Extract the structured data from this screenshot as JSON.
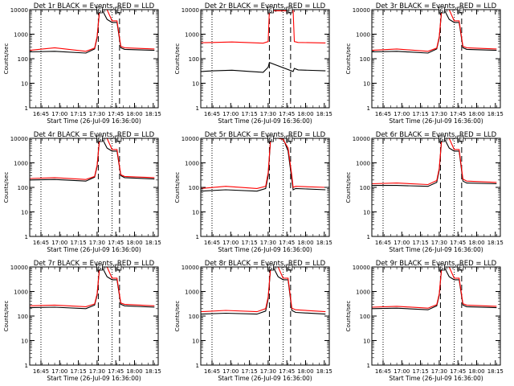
{
  "common": {
    "xlabel": "Start Time (26-Jul-09 16:36:00)",
    "ylabel": "Counts/sec",
    "xticks": [
      "16:45",
      "17:00",
      "17:15",
      "17:30",
      "17:45",
      "18:00",
      "18:15"
    ],
    "yticks": [
      "1",
      "10",
      "100",
      "1000",
      "10000"
    ],
    "ylim": [
      1,
      10000
    ],
    "xlim_minutes_after_16_36": [
      0,
      103
    ],
    "dotted_lines_minutes_after_16_36": [
      9,
      66
    ],
    "dashed_lines_minutes_after_16_36": [
      55,
      72
    ],
    "top_markers": [
      {
        "label": "S",
        "minute": 56
      },
      {
        "label": "E",
        "minute": 71
      }
    ],
    "colors": {
      "events": "#000000",
      "lld": "#ff0000"
    }
  },
  "chart_data": [
    {
      "type": "line",
      "title": "Det 1r BLACK = Events, RED = LLD",
      "yscale": "log",
      "x_minutes": [
        0,
        20,
        45,
        52,
        54,
        56,
        58,
        62,
        66,
        70,
        73,
        76,
        100
      ],
      "series": [
        {
          "name": "Events",
          "values": [
            190,
            200,
            170,
            250,
            700,
            10000,
            10000,
            4000,
            3000,
            3000,
            280,
            240,
            220
          ]
        },
        {
          "name": "LLD",
          "values": [
            220,
            280,
            200,
            270,
            800,
            10000,
            10000,
            10000,
            3500,
            3500,
            320,
            280,
            250
          ]
        }
      ]
    },
    {
      "type": "line",
      "title": "Det 2r BLACK = Events, RED = LLD",
      "yscale": "log",
      "x_minutes": [
        0,
        10,
        25,
        40,
        50,
        54,
        55,
        74,
        75,
        78,
        100
      ],
      "series": [
        {
          "name": "Events",
          "values": [
            30,
            32,
            34,
            30,
            28,
            45,
            70,
            30,
            40,
            35,
            32
          ]
        },
        {
          "name": "LLD",
          "values": [
            450,
            460,
            480,
            450,
            430,
            500,
            9000,
            9000,
            500,
            460,
            440
          ]
        }
      ]
    },
    {
      "type": "line",
      "title": "Det 3r BLACK = Events, RED = LLD",
      "yscale": "log",
      "x_minutes": [
        0,
        20,
        45,
        52,
        54,
        56,
        58,
        62,
        66,
        70,
        73,
        76,
        100
      ],
      "series": [
        {
          "name": "Events",
          "values": [
            190,
            200,
            170,
            250,
            700,
            10000,
            10000,
            4000,
            3000,
            3000,
            280,
            240,
            220
          ]
        },
        {
          "name": "LLD",
          "values": [
            220,
            250,
            200,
            270,
            800,
            10000,
            10000,
            10000,
            3500,
            3500,
            320,
            280,
            250
          ]
        }
      ]
    },
    {
      "type": "line",
      "title": "Det 4r BLACK = Events, RED = LLD",
      "yscale": "log",
      "x_minutes": [
        0,
        20,
        45,
        52,
        54,
        56,
        58,
        62,
        66,
        70,
        73,
        76,
        100
      ],
      "series": [
        {
          "name": "Events",
          "values": [
            200,
            210,
            180,
            260,
            700,
            10000,
            10000,
            4000,
            3000,
            3000,
            300,
            250,
            220
          ]
        },
        {
          "name": "LLD",
          "values": [
            230,
            250,
            210,
            280,
            800,
            10000,
            10000,
            10000,
            3500,
            3500,
            330,
            280,
            250
          ]
        }
      ]
    },
    {
      "type": "line",
      "title": "Det 5r BLACK = Events, RED = LLD",
      "yscale": "log",
      "x_minutes": [
        0,
        20,
        45,
        52,
        54,
        56,
        62,
        66,
        70,
        73,
        74,
        76,
        100
      ],
      "series": [
        {
          "name": "Events",
          "values": [
            70,
            80,
            70,
            90,
            300,
            10000,
            10000,
            10000,
            3000,
            200,
            80,
            90,
            80
          ]
        },
        {
          "name": "LLD",
          "values": [
            90,
            110,
            90,
            110,
            400,
            10000,
            10000,
            9000,
            4000,
            300,
            100,
            110,
            100
          ]
        }
      ]
    },
    {
      "type": "line",
      "title": "Det 6r BLACK = Events, RED = LLD",
      "yscale": "log",
      "x_minutes": [
        0,
        20,
        45,
        52,
        54,
        56,
        58,
        62,
        66,
        70,
        73,
        76,
        100
      ],
      "series": [
        {
          "name": "Events",
          "values": [
            120,
            120,
            110,
            160,
            500,
            10000,
            10000,
            4000,
            3000,
            3000,
            180,
            150,
            140
          ]
        },
        {
          "name": "LLD",
          "values": [
            140,
            150,
            130,
            190,
            600,
            10000,
            10000,
            10000,
            3500,
            3500,
            220,
            180,
            160
          ]
        }
      ]
    },
    {
      "type": "line",
      "title": "Det 7r BLACK = Events, RED = LLD",
      "yscale": "log",
      "x_minutes": [
        0,
        20,
        45,
        52,
        54,
        56,
        58,
        62,
        66,
        70,
        73,
        76,
        100
      ],
      "series": [
        {
          "name": "Events",
          "values": [
            220,
            230,
            200,
            280,
            700,
            10000,
            10000,
            4000,
            3000,
            3000,
            300,
            260,
            230
          ]
        },
        {
          "name": "LLD",
          "values": [
            260,
            280,
            240,
            310,
            800,
            10000,
            10000,
            10000,
            3500,
            3500,
            340,
            300,
            260
          ]
        }
      ]
    },
    {
      "type": "line",
      "title": "Det 8r BLACK = Events, RED = LLD",
      "yscale": "log",
      "x_minutes": [
        0,
        20,
        45,
        52,
        54,
        56,
        58,
        62,
        66,
        70,
        73,
        76,
        100
      ],
      "series": [
        {
          "name": "Events",
          "values": [
            120,
            130,
            120,
            160,
            500,
            10000,
            10000,
            4000,
            3000,
            3000,
            170,
            140,
            120
          ]
        },
        {
          "name": "LLD",
          "values": [
            150,
            170,
            150,
            200,
            600,
            10000,
            10000,
            10000,
            3500,
            3500,
            210,
            180,
            150
          ]
        }
      ]
    },
    {
      "type": "line",
      "title": "Det 9r BLACK = Events, RED = LLD",
      "yscale": "log",
      "x_minutes": [
        0,
        20,
        45,
        52,
        54,
        56,
        58,
        62,
        66,
        70,
        73,
        76,
        100
      ],
      "series": [
        {
          "name": "Events",
          "values": [
            200,
            210,
            180,
            260,
            700,
            10000,
            10000,
            4000,
            3000,
            3000,
            280,
            240,
            220
          ]
        },
        {
          "name": "LLD",
          "values": [
            230,
            250,
            210,
            290,
            800,
            10000,
            10000,
            10000,
            3500,
            3500,
            320,
            280,
            250
          ]
        }
      ]
    }
  ]
}
